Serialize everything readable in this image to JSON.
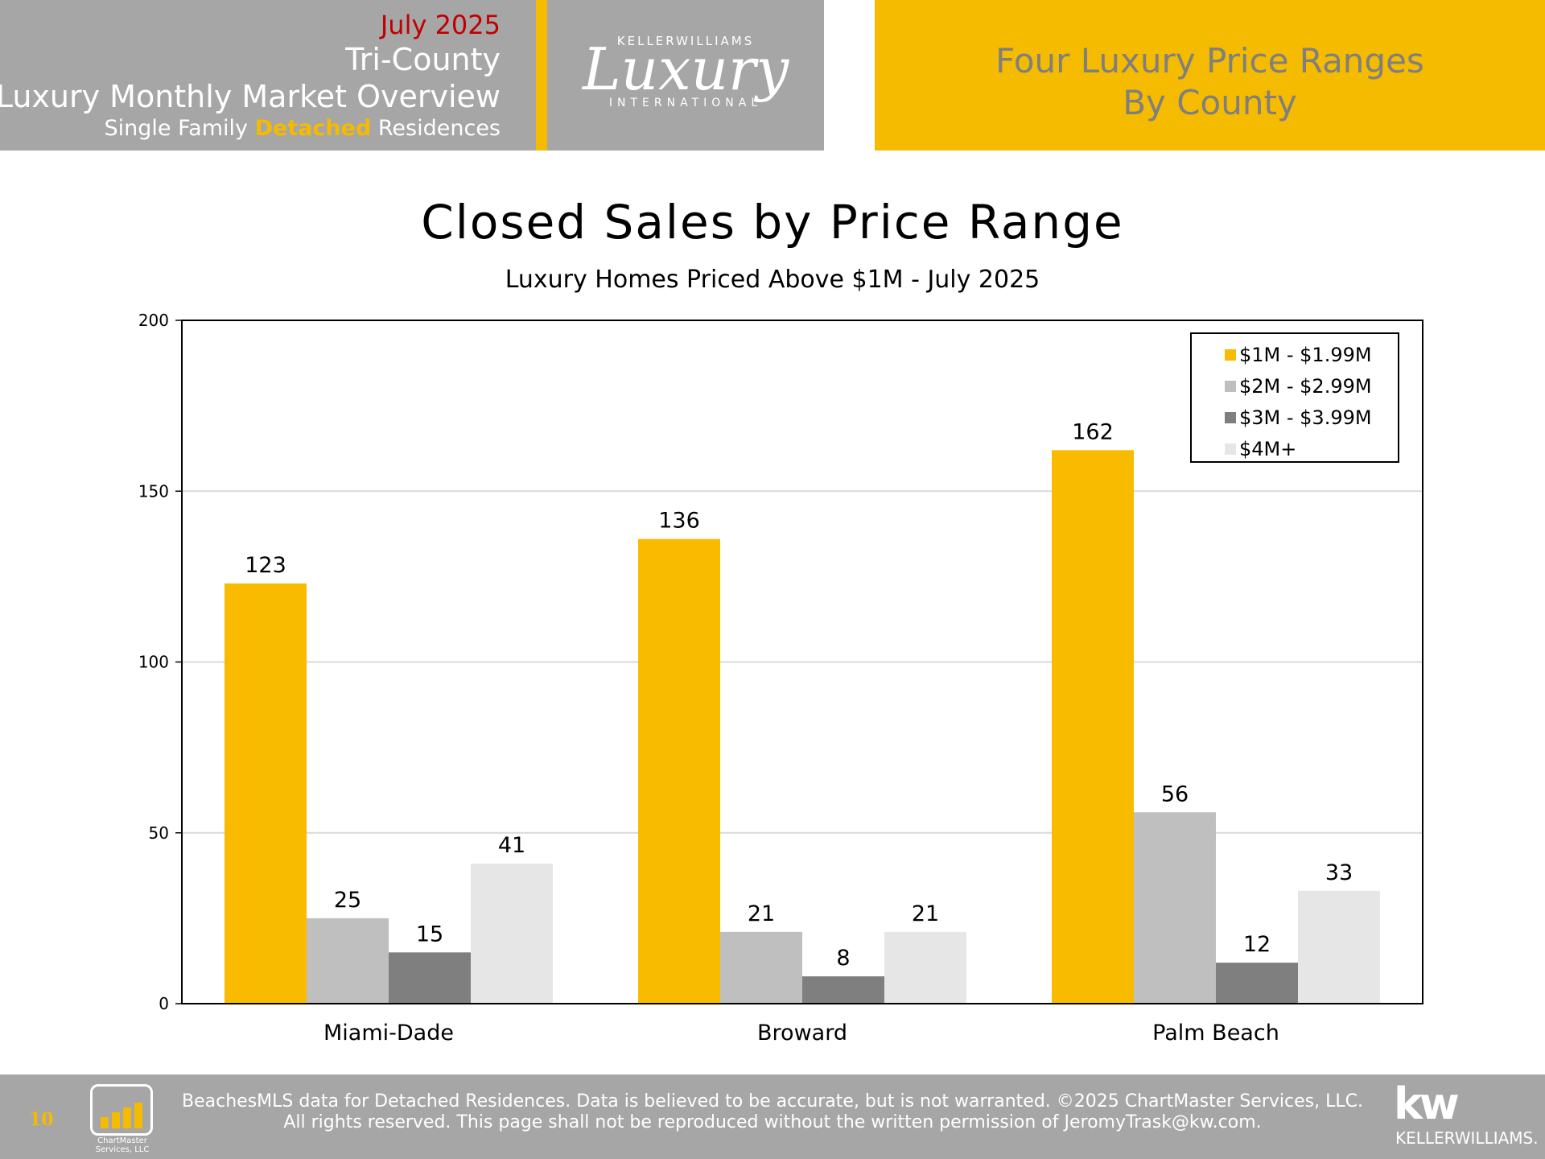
{
  "header": {
    "date": "July 2025",
    "region": "Tri-County",
    "title": "Luxury Monthly Market Overview",
    "subtitle_pre": "Single Family ",
    "subtitle_highlight": "Detached",
    "subtitle_post": " Residences",
    "right_line1": "Four Luxury Price Ranges",
    "right_line2": "By County"
  },
  "logo": {
    "top": "KELLERWILLIAMS",
    "script": "Luxury",
    "bottom": "INTERNATIONAL"
  },
  "chart_data": {
    "type": "bar",
    "title": "Closed Sales by Price Range",
    "subtitle": "Luxury Homes Priced Above $1M - July 2025",
    "categories": [
      "Miami-Dade",
      "Broward",
      "Palm Beach"
    ],
    "series": [
      {
        "name": "$1M - $1.99M",
        "values": [
          123,
          136,
          162
        ],
        "color": "#f9bb00"
      },
      {
        "name": "$2M - $2.99M",
        "values": [
          25,
          21,
          56
        ],
        "color": "#bfbfbf"
      },
      {
        "name": "$3M - $3.99M",
        "values": [
          15,
          8,
          12
        ],
        "color": "#7f7f7f"
      },
      {
        "name": "$4M+",
        "values": [
          41,
          21,
          33
        ],
        "color": "#e6e6e6"
      }
    ],
    "ylim": [
      0,
      200
    ],
    "yticks": [
      0,
      50,
      100,
      150,
      200
    ],
    "grid": true,
    "legend": "top-right",
    "data_labels": true
  },
  "footer": {
    "page_number": "10",
    "chartmaster_label_1": "ChartMaster",
    "chartmaster_label_2": "Services, LLC",
    "line1": "BeachesMLS data for Detached Residences.  Data is believed to be accurate, but is not warranted.   ©2025  ChartMaster Services, LLC.",
    "line2": "All rights reserved. This page shall not be reproduced without the written permission of JeromyTrask@kw.com.",
    "kw_logo": "kw",
    "kw_text": "KELLERWILLIAMS."
  }
}
